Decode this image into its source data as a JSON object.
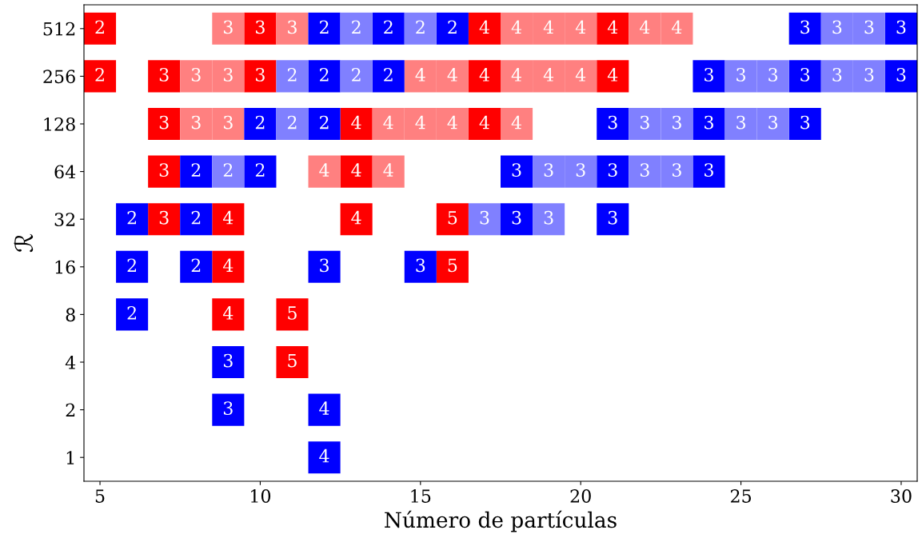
{
  "chart_data": {
    "type": "scatter",
    "xlabel": "Número de partículas",
    "ylabel": "ℛ",
    "log": "y",
    "marker": "square",
    "grid": false,
    "xlim": [
      4.5,
      30.5
    ],
    "xticks": [
      5,
      10,
      15,
      20,
      25,
      30
    ],
    "ylim": [
      0.7071,
      724.08
    ],
    "yticks": [
      1,
      2,
      4,
      8,
      16,
      32,
      64,
      128,
      256,
      512
    ],
    "series": [
      {
        "color": "#ff0000",
        "x": [
          5,
          5,
          7,
          7,
          7,
          7,
          9,
          9,
          9,
          10,
          10,
          11,
          11,
          13,
          13,
          13,
          16,
          16,
          17,
          17,
          17,
          21,
          21
        ],
        "values": [
          512,
          256,
          256,
          128,
          64,
          32,
          32,
          16,
          8,
          512,
          256,
          8,
          4,
          128,
          64,
          32,
          32,
          16,
          512,
          256,
          128,
          512,
          256
        ]
      },
      {
        "color": "#ff8080",
        "x": [
          8,
          8,
          9,
          9,
          9,
          11,
          12,
          14,
          14,
          15,
          15,
          16,
          16,
          18,
          18,
          18,
          19,
          19,
          20,
          20,
          22,
          23
        ],
        "values": [
          256,
          128,
          512,
          256,
          128,
          512,
          64,
          128,
          64,
          256,
          128,
          256,
          128,
          512,
          256,
          128,
          512,
          256,
          512,
          256,
          512,
          512
        ]
      },
      {
        "color": "#0000ff",
        "x": [
          6,
          6,
          6,
          8,
          8,
          8,
          9,
          9,
          10,
          10,
          12,
          12,
          12,
          12,
          12,
          12,
          14,
          14,
          15,
          16,
          18,
          18,
          21,
          21,
          21,
          24,
          24,
          24,
          27,
          27,
          27,
          30,
          30
        ],
        "values": [
          32,
          16,
          8,
          64,
          32,
          16,
          4,
          2,
          128,
          64,
          512,
          256,
          128,
          16,
          2,
          1,
          512,
          256,
          16,
          512,
          64,
          32,
          128,
          64,
          32,
          256,
          128,
          64,
          512,
          256,
          128,
          512,
          256
        ]
      },
      {
        "color": "#8080ff",
        "x": [
          9,
          11,
          11,
          13,
          13,
          15,
          17,
          19,
          19,
          20,
          22,
          22,
          23,
          23,
          25,
          25,
          26,
          26,
          28,
          28,
          29,
          29
        ],
        "values": [
          64,
          256,
          128,
          512,
          256,
          512,
          32,
          64,
          32,
          64,
          128,
          64,
          128,
          64,
          256,
          128,
          256,
          128,
          512,
          256,
          512,
          256
        ]
      }
    ],
    "annotations": [
      {
        "text": "2",
        "x": 5,
        "y": 512
      },
      {
        "text": "2",
        "x": 5,
        "y": 256
      },
      {
        "text": "3",
        "x": 7,
        "y": 256
      },
      {
        "text": "3",
        "x": 7,
        "y": 128
      },
      {
        "text": "3",
        "x": 7,
        "y": 64
      },
      {
        "text": "3",
        "x": 7,
        "y": 32
      },
      {
        "text": "4",
        "x": 9,
        "y": 32
      },
      {
        "text": "4",
        "x": 9,
        "y": 16
      },
      {
        "text": "4",
        "x": 9,
        "y": 8
      },
      {
        "text": "3",
        "x": 10,
        "y": 512
      },
      {
        "text": "3",
        "x": 10,
        "y": 256
      },
      {
        "text": "5",
        "x": 11,
        "y": 8
      },
      {
        "text": "5",
        "x": 11,
        "y": 4
      },
      {
        "text": "4",
        "x": 13,
        "y": 128
      },
      {
        "text": "4",
        "x": 13,
        "y": 64
      },
      {
        "text": "4",
        "x": 13,
        "y": 32
      },
      {
        "text": "5",
        "x": 16,
        "y": 32
      },
      {
        "text": "5",
        "x": 16,
        "y": 16
      },
      {
        "text": "4",
        "x": 17,
        "y": 512
      },
      {
        "text": "4",
        "x": 17,
        "y": 256
      },
      {
        "text": "4",
        "x": 17,
        "y": 128
      },
      {
        "text": "4",
        "x": 21,
        "y": 512
      },
      {
        "text": "4",
        "x": 21,
        "y": 256
      },
      {
        "text": "3",
        "x": 8,
        "y": 256
      },
      {
        "text": "3",
        "x": 8,
        "y": 128
      },
      {
        "text": "3",
        "x": 9,
        "y": 512
      },
      {
        "text": "3",
        "x": 9,
        "y": 256
      },
      {
        "text": "3",
        "x": 9,
        "y": 128
      },
      {
        "text": "3",
        "x": 11,
        "y": 512
      },
      {
        "text": "4",
        "x": 12,
        "y": 64
      },
      {
        "text": "4",
        "x": 14,
        "y": 128
      },
      {
        "text": "4",
        "x": 14,
        "y": 64
      },
      {
        "text": "4",
        "x": 15,
        "y": 256
      },
      {
        "text": "4",
        "x": 15,
        "y": 128
      },
      {
        "text": "4",
        "x": 16,
        "y": 256
      },
      {
        "text": "4",
        "x": 16,
        "y": 128
      },
      {
        "text": "4",
        "x": 18,
        "y": 512
      },
      {
        "text": "4",
        "x": 18,
        "y": 256
      },
      {
        "text": "4",
        "x": 18,
        "y": 128
      },
      {
        "text": "4",
        "x": 19,
        "y": 512
      },
      {
        "text": "4",
        "x": 19,
        "y": 256
      },
      {
        "text": "4",
        "x": 20,
        "y": 512
      },
      {
        "text": "4",
        "x": 20,
        "y": 256
      },
      {
        "text": "4",
        "x": 22,
        "y": 512
      },
      {
        "text": "4",
        "x": 23,
        "y": 512
      },
      {
        "text": "2",
        "x": 6,
        "y": 32
      },
      {
        "text": "2",
        "x": 6,
        "y": 16
      },
      {
        "text": "2",
        "x": 6,
        "y": 8
      },
      {
        "text": "2",
        "x": 8,
        "y": 64
      },
      {
        "text": "2",
        "x": 8,
        "y": 32
      },
      {
        "text": "2",
        "x": 8,
        "y": 16
      },
      {
        "text": "3",
        "x": 9,
        "y": 4
      },
      {
        "text": "3",
        "x": 9,
        "y": 2
      },
      {
        "text": "2",
        "x": 10,
        "y": 128
      },
      {
        "text": "2",
        "x": 10,
        "y": 64
      },
      {
        "text": "2",
        "x": 12,
        "y": 512
      },
      {
        "text": "2",
        "x": 12,
        "y": 256
      },
      {
        "text": "2",
        "x": 12,
        "y": 128
      },
      {
        "text": "3",
        "x": 12,
        "y": 16
      },
      {
        "text": "4",
        "x": 12,
        "y": 2
      },
      {
        "text": "4",
        "x": 12,
        "y": 1
      },
      {
        "text": "2",
        "x": 14,
        "y": 512
      },
      {
        "text": "2",
        "x": 14,
        "y": 256
      },
      {
        "text": "3",
        "x": 15,
        "y": 16
      },
      {
        "text": "2",
        "x": 16,
        "y": 512
      },
      {
        "text": "3",
        "x": 18,
        "y": 64
      },
      {
        "text": "3",
        "x": 18,
        "y": 32
      },
      {
        "text": "3",
        "x": 21,
        "y": 128
      },
      {
        "text": "3",
        "x": 21,
        "y": 64
      },
      {
        "text": "3",
        "x": 21,
        "y": 32
      },
      {
        "text": "3",
        "x": 24,
        "y": 256
      },
      {
        "text": "3",
        "x": 24,
        "y": 128
      },
      {
        "text": "3",
        "x": 24,
        "y": 64
      },
      {
        "text": "3",
        "x": 27,
        "y": 512
      },
      {
        "text": "3",
        "x": 27,
        "y": 256
      },
      {
        "text": "3",
        "x": 27,
        "y": 128
      },
      {
        "text": "3",
        "x": 30,
        "y": 512
      },
      {
        "text": "3",
        "x": 30,
        "y": 256
      },
      {
        "text": "2",
        "x": 9,
        "y": 64
      },
      {
        "text": "2",
        "x": 11,
        "y": 256
      },
      {
        "text": "2",
        "x": 11,
        "y": 128
      },
      {
        "text": "2",
        "x": 13,
        "y": 512
      },
      {
        "text": "2",
        "x": 13,
        "y": 256
      },
      {
        "text": "2",
        "x": 15,
        "y": 512
      },
      {
        "text": "3",
        "x": 17,
        "y": 32
      },
      {
        "text": "3",
        "x": 19,
        "y": 64
      },
      {
        "text": "3",
        "x": 19,
        "y": 32
      },
      {
        "text": "3",
        "x": 20,
        "y": 64
      },
      {
        "text": "3",
        "x": 22,
        "y": 128
      },
      {
        "text": "3",
        "x": 22,
        "y": 64
      },
      {
        "text": "3",
        "x": 23,
        "y": 128
      },
      {
        "text": "3",
        "x": 23,
        "y": 64
      },
      {
        "text": "3",
        "x": 25,
        "y": 256
      },
      {
        "text": "3",
        "x": 25,
        "y": 128
      },
      {
        "text": "3",
        "x": 26,
        "y": 256
      },
      {
        "text": "3",
        "x": 26,
        "y": 128
      },
      {
        "text": "3",
        "x": 28,
        "y": 512
      },
      {
        "text": "3",
        "x": 28,
        "y": 256
      },
      {
        "text": "3",
        "x": 29,
        "y": 512
      },
      {
        "text": "3",
        "x": 29,
        "y": 256
      }
    ]
  }
}
